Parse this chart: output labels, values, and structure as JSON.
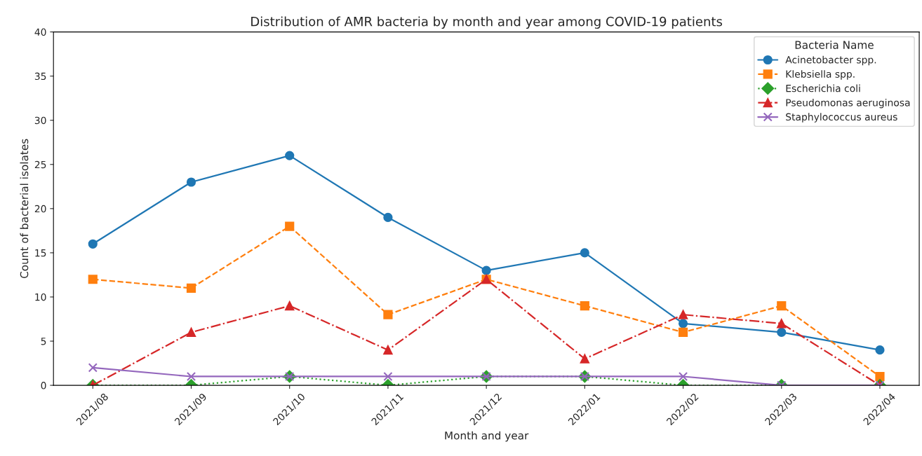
{
  "chart_data": {
    "type": "line",
    "title": "Distribution of AMR bacteria by month and year among COVID-19 patients",
    "xlabel": "Month and year",
    "ylabel": "Count of bacterial isolates",
    "legend_title": "Bacteria Name",
    "legend": "top right",
    "grid": false,
    "categories": [
      "2021/08",
      "2021/09",
      "2021/10",
      "2021/11",
      "2021/12",
      "2022/01",
      "2022/02",
      "2022/03",
      "2022/04"
    ],
    "ylim": [
      0,
      40
    ],
    "yticks": [
      0,
      5,
      10,
      15,
      20,
      25,
      30,
      35,
      40
    ],
    "series": [
      {
        "name": "Acinetobacter spp.",
        "color": "#1f77b4",
        "marker": "circle",
        "line_style": "solid",
        "values": [
          16,
          23,
          26,
          19,
          13,
          15,
          7,
          6,
          4
        ]
      },
      {
        "name": "Klebsiella spp.",
        "color": "#ff7f0e",
        "marker": "square",
        "line_style": "dashed",
        "values": [
          12,
          11,
          18,
          8,
          12,
          9,
          6,
          9,
          1
        ]
      },
      {
        "name": "Escherichia coli",
        "color": "#2ca02c",
        "marker": "diamond",
        "line_style": "dotted",
        "values": [
          0,
          0,
          1,
          0,
          1,
          1,
          0,
          0,
          0
        ]
      },
      {
        "name": "Pseudomonas aeruginosa",
        "color": "#d62728",
        "marker": "triangle",
        "line_style": "dashdot",
        "values": [
          0,
          6,
          9,
          4,
          12,
          3,
          8,
          7,
          0
        ]
      },
      {
        "name": "Staphylococcus aureus",
        "color": "#9467bd",
        "marker": "cross",
        "line_style": "solid",
        "values": [
          2,
          1,
          1,
          1,
          1,
          1,
          1,
          0,
          0
        ]
      }
    ]
  }
}
